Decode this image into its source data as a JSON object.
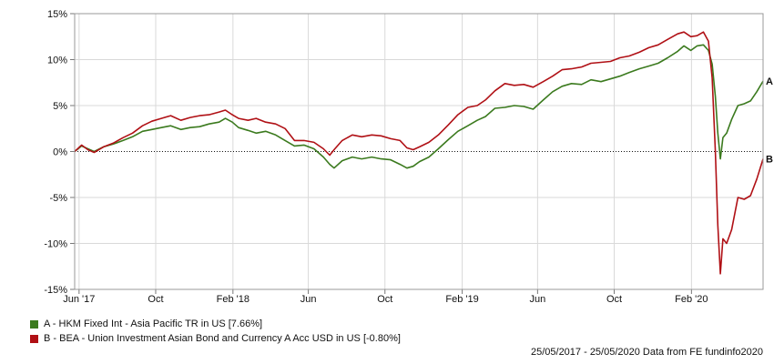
{
  "chart_data": {
    "type": "line",
    "title": "",
    "xlabel": "",
    "ylabel": "",
    "ylim": [
      -15,
      15
    ],
    "yticks": [
      15,
      10,
      5,
      0,
      -5,
      -10,
      -15
    ],
    "ytick_labels": [
      "15%",
      "10%",
      "5%",
      "0%",
      "-5%",
      "-10%",
      "-15%"
    ],
    "xlim": [
      "2017-05-25",
      "2020-05-25"
    ],
    "xticks": [
      {
        "date": "2017-06-01",
        "label": "Jun '17"
      },
      {
        "date": "2017-10-01",
        "label": "Oct"
      },
      {
        "date": "2018-02-01",
        "label": "Feb '18"
      },
      {
        "date": "2018-06-01",
        "label": "Jun"
      },
      {
        "date": "2018-10-01",
        "label": "Oct"
      },
      {
        "date": "2019-02-01",
        "label": "Feb '19"
      },
      {
        "date": "2019-06-01",
        "label": "Jun"
      },
      {
        "date": "2019-10-01",
        "label": "Oct"
      },
      {
        "date": "2020-02-01",
        "label": "Feb '20"
      }
    ],
    "grid": true,
    "zero_line": true,
    "series": [
      {
        "name": "A - HKM Fixed Int - Asia Pacific TR in US [7.66%]",
        "end_label": "A",
        "color": "#3b7a1e",
        "points": [
          [
            "2017-05-25",
            0.0
          ],
          [
            "2017-06-05",
            0.6
          ],
          [
            "2017-06-15",
            0.3
          ],
          [
            "2017-06-25",
            0.0
          ],
          [
            "2017-07-10",
            0.5
          ],
          [
            "2017-07-25",
            0.8
          ],
          [
            "2017-08-10",
            1.2
          ],
          [
            "2017-08-25",
            1.6
          ],
          [
            "2017-09-10",
            2.2
          ],
          [
            "2017-09-25",
            2.4
          ],
          [
            "2017-10-10",
            2.6
          ],
          [
            "2017-10-25",
            2.8
          ],
          [
            "2017-11-10",
            2.4
          ],
          [
            "2017-11-25",
            2.6
          ],
          [
            "2017-12-10",
            2.7
          ],
          [
            "2017-12-25",
            3.0
          ],
          [
            "2018-01-10",
            3.2
          ],
          [
            "2018-01-20",
            3.6
          ],
          [
            "2018-01-31",
            3.2
          ],
          [
            "2018-02-10",
            2.6
          ],
          [
            "2018-02-25",
            2.3
          ],
          [
            "2018-03-10",
            2.0
          ],
          [
            "2018-03-25",
            2.2
          ],
          [
            "2018-04-10",
            1.8
          ],
          [
            "2018-04-25",
            1.2
          ],
          [
            "2018-05-10",
            0.6
          ],
          [
            "2018-05-25",
            0.7
          ],
          [
            "2018-06-10",
            0.3
          ],
          [
            "2018-06-25",
            -0.6
          ],
          [
            "2018-07-05",
            -1.4
          ],
          [
            "2018-07-12",
            -1.8
          ],
          [
            "2018-07-25",
            -1.0
          ],
          [
            "2018-08-10",
            -0.6
          ],
          [
            "2018-08-25",
            -0.8
          ],
          [
            "2018-09-10",
            -0.6
          ],
          [
            "2018-09-25",
            -0.8
          ],
          [
            "2018-10-10",
            -0.9
          ],
          [
            "2018-10-25",
            -1.4
          ],
          [
            "2018-11-05",
            -1.8
          ],
          [
            "2018-11-15",
            -1.6
          ],
          [
            "2018-11-25",
            -1.1
          ],
          [
            "2018-12-10",
            -0.6
          ],
          [
            "2018-12-25",
            0.3
          ],
          [
            "2019-01-10",
            1.3
          ],
          [
            "2019-01-25",
            2.2
          ],
          [
            "2019-02-10",
            2.8
          ],
          [
            "2019-02-25",
            3.4
          ],
          [
            "2019-03-10",
            3.8
          ],
          [
            "2019-03-25",
            4.7
          ],
          [
            "2019-04-10",
            4.8
          ],
          [
            "2019-04-25",
            5.0
          ],
          [
            "2019-05-10",
            4.9
          ],
          [
            "2019-05-25",
            4.6
          ],
          [
            "2019-06-10",
            5.6
          ],
          [
            "2019-06-25",
            6.5
          ],
          [
            "2019-07-10",
            7.1
          ],
          [
            "2019-07-25",
            7.4
          ],
          [
            "2019-08-10",
            7.3
          ],
          [
            "2019-08-25",
            7.8
          ],
          [
            "2019-09-10",
            7.6
          ],
          [
            "2019-09-25",
            7.9
          ],
          [
            "2019-10-10",
            8.2
          ],
          [
            "2019-10-25",
            8.6
          ],
          [
            "2019-11-10",
            9.0
          ],
          [
            "2019-11-25",
            9.3
          ],
          [
            "2019-12-10",
            9.6
          ],
          [
            "2019-12-25",
            10.2
          ],
          [
            "2020-01-10",
            10.9
          ],
          [
            "2020-01-20",
            11.5
          ],
          [
            "2020-01-31",
            11.0
          ],
          [
            "2020-02-10",
            11.5
          ],
          [
            "2020-02-20",
            11.6
          ],
          [
            "2020-02-28",
            11.0
          ],
          [
            "2020-03-05",
            9.5
          ],
          [
            "2020-03-10",
            6.0
          ],
          [
            "2020-03-14",
            2.0
          ],
          [
            "2020-03-18",
            -0.8
          ],
          [
            "2020-03-22",
            1.5
          ],
          [
            "2020-03-28",
            2.0
          ],
          [
            "2020-04-05",
            3.5
          ],
          [
            "2020-04-15",
            5.0
          ],
          [
            "2020-04-25",
            5.2
          ],
          [
            "2020-05-05",
            5.5
          ],
          [
            "2020-05-15",
            6.5
          ],
          [
            "2020-05-25",
            7.66
          ]
        ]
      },
      {
        "name": "B - BEA - Union Investment Asian Bond and Currency A Acc USD in US [-0.80%]",
        "end_label": "B",
        "color": "#b01015",
        "points": [
          [
            "2017-05-25",
            0.0
          ],
          [
            "2017-06-05",
            0.7
          ],
          [
            "2017-06-15",
            0.2
          ],
          [
            "2017-06-25",
            -0.1
          ],
          [
            "2017-07-10",
            0.5
          ],
          [
            "2017-07-25",
            0.9
          ],
          [
            "2017-08-10",
            1.5
          ],
          [
            "2017-08-25",
            2.0
          ],
          [
            "2017-09-10",
            2.8
          ],
          [
            "2017-09-25",
            3.3
          ],
          [
            "2017-10-10",
            3.6
          ],
          [
            "2017-10-25",
            3.9
          ],
          [
            "2017-11-10",
            3.4
          ],
          [
            "2017-11-25",
            3.7
          ],
          [
            "2017-12-10",
            3.9
          ],
          [
            "2017-12-25",
            4.0
          ],
          [
            "2018-01-10",
            4.3
          ],
          [
            "2018-01-20",
            4.5
          ],
          [
            "2018-01-31",
            4.0
          ],
          [
            "2018-02-10",
            3.6
          ],
          [
            "2018-02-25",
            3.4
          ],
          [
            "2018-03-10",
            3.6
          ],
          [
            "2018-03-25",
            3.2
          ],
          [
            "2018-04-10",
            3.0
          ],
          [
            "2018-04-25",
            2.5
          ],
          [
            "2018-05-10",
            1.2
          ],
          [
            "2018-05-25",
            1.2
          ],
          [
            "2018-06-10",
            1.0
          ],
          [
            "2018-06-25",
            0.3
          ],
          [
            "2018-07-05",
            -0.4
          ],
          [
            "2018-07-12",
            0.2
          ],
          [
            "2018-07-25",
            1.2
          ],
          [
            "2018-08-10",
            1.8
          ],
          [
            "2018-08-25",
            1.6
          ],
          [
            "2018-09-10",
            1.8
          ],
          [
            "2018-09-25",
            1.7
          ],
          [
            "2018-10-10",
            1.4
          ],
          [
            "2018-10-25",
            1.2
          ],
          [
            "2018-11-05",
            0.4
          ],
          [
            "2018-11-15",
            0.2
          ],
          [
            "2018-11-25",
            0.5
          ],
          [
            "2018-12-10",
            1.0
          ],
          [
            "2018-12-25",
            1.8
          ],
          [
            "2019-01-10",
            2.9
          ],
          [
            "2019-01-25",
            4.0
          ],
          [
            "2019-02-10",
            4.8
          ],
          [
            "2019-02-25",
            5.0
          ],
          [
            "2019-03-10",
            5.6
          ],
          [
            "2019-03-25",
            6.6
          ],
          [
            "2019-04-10",
            7.4
          ],
          [
            "2019-04-25",
            7.2
          ],
          [
            "2019-05-10",
            7.3
          ],
          [
            "2019-05-25",
            7.0
          ],
          [
            "2019-06-10",
            7.6
          ],
          [
            "2019-06-25",
            8.2
          ],
          [
            "2019-07-10",
            8.9
          ],
          [
            "2019-07-25",
            9.0
          ],
          [
            "2019-08-10",
            9.2
          ],
          [
            "2019-08-25",
            9.6
          ],
          [
            "2019-09-10",
            9.7
          ],
          [
            "2019-09-25",
            9.8
          ],
          [
            "2019-10-10",
            10.2
          ],
          [
            "2019-10-25",
            10.4
          ],
          [
            "2019-11-10",
            10.8
          ],
          [
            "2019-11-25",
            11.3
          ],
          [
            "2019-12-10",
            11.6
          ],
          [
            "2019-12-25",
            12.2
          ],
          [
            "2020-01-10",
            12.8
          ],
          [
            "2020-01-20",
            13.0
          ],
          [
            "2020-01-31",
            12.5
          ],
          [
            "2020-02-10",
            12.6
          ],
          [
            "2020-02-20",
            13.0
          ],
          [
            "2020-02-28",
            12.0
          ],
          [
            "2020-03-05",
            8.0
          ],
          [
            "2020-03-10",
            0.0
          ],
          [
            "2020-03-14",
            -8.0
          ],
          [
            "2020-03-18",
            -13.3
          ],
          [
            "2020-03-22",
            -9.5
          ],
          [
            "2020-03-28",
            -10.0
          ],
          [
            "2020-04-05",
            -8.5
          ],
          [
            "2020-04-15",
            -5.0
          ],
          [
            "2020-04-25",
            -5.2
          ],
          [
            "2020-05-05",
            -4.8
          ],
          [
            "2020-05-15",
            -3.0
          ],
          [
            "2020-05-25",
            -0.8
          ]
        ]
      }
    ]
  },
  "footer": "25/05/2017 - 25/05/2020 Data from FE fundinfo2020"
}
